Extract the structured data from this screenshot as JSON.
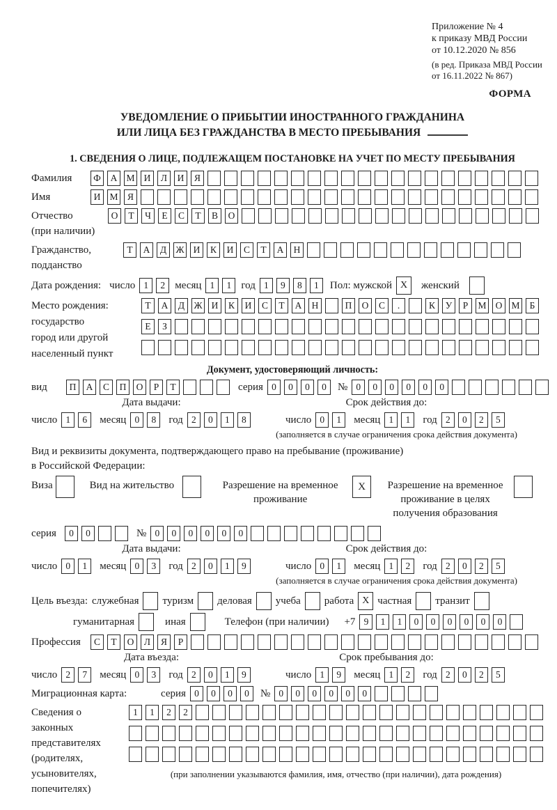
{
  "header": {
    "appendix_line1": "Приложение № 4",
    "appendix_line2": "к приказу МВД России",
    "appendix_line3": "от 10.12.2020 № 856",
    "revision_line1": "(в ред. Приказа МВД России",
    "revision_line2": "от 16.11.2022 № 867)",
    "form_label": "ФОРМА"
  },
  "title": {
    "line1": "УВЕДОМЛЕНИЕ О ПРИБЫТИИ ИНОСТРАННОГО ГРАЖДАНИНА",
    "line2": "ИЛИ ЛИЦА БЕЗ ГРАЖДАНСТВА В МЕСТО ПРЕБЫВАНИЯ"
  },
  "section1": {
    "title": "1. СВЕДЕНИЯ О ЛИЦЕ, ПОДЛЕЖАЩЕМ ПОСТАНОВКЕ НА УЧЕТ ПО МЕСТУ ПРЕБЫВАНИЯ"
  },
  "date_labels": {
    "day": "число",
    "month": "месяц",
    "year": "год"
  },
  "person": {
    "surname_label": "Фамилия",
    "surname": {
      "value": "ФАМИЛИЯ",
      "cells": 27
    },
    "name_label": "Имя",
    "name": {
      "value": "ИМЯ",
      "cells": 27
    },
    "patronymic_label1": "Отчество",
    "patronymic_label2": "(при наличии)",
    "patronymic": {
      "value": "ОТЧЕСТВО",
      "cells": 26
    },
    "citizenship_label1": "Гражданство,",
    "citizenship_label2": "подданство",
    "citizenship": {
      "value": "ТАДЖИКИСТАН",
      "cells": 24
    },
    "birth_date_label": "Дата рождения:",
    "birth_day": {
      "value": "12",
      "cells": 2
    },
    "birth_month": {
      "value": "11",
      "cells": 2
    },
    "birth_year": {
      "value": "1981",
      "cells": 4
    },
    "sex_label": "Пол: мужской",
    "sex_male": "X",
    "sex_female_label": "женский",
    "sex_female": "",
    "birth_place_label": "Место рождения:",
    "birth_place_sublabel1": "государство",
    "birth_place_sublabel2": "город или другой",
    "birth_place_sublabel3": "населенный пункт",
    "birth_place_line1": {
      "value": "ТАДЖИКИСТАН ПОС. КУРМОМБ",
      "cells": 24
    },
    "birth_place_line2": {
      "value": "ЕЗ",
      "cells": 24
    },
    "birth_place_line3": {
      "value": "",
      "cells": 24
    }
  },
  "identity_doc": {
    "header": "Документ, удостоверяющий личность:",
    "kind_label": "вид",
    "kind": {
      "value": "ПАСПОРТ",
      "cells": 10
    },
    "series_label": "серия",
    "series": {
      "value": "0000",
      "cells": 4
    },
    "number_label": "№",
    "number": {
      "value": "000000",
      "cells": 12
    },
    "issue_header": "Дата выдачи:",
    "valid_header": "Срок действия до:",
    "issue_day": {
      "value": "16",
      "cells": 2
    },
    "issue_month": {
      "value": "08",
      "cells": 2
    },
    "issue_year": {
      "value": "2018",
      "cells": 4
    },
    "valid_day": {
      "value": "01",
      "cells": 2
    },
    "valid_month": {
      "value": "11",
      "cells": 2
    },
    "valid_year": {
      "value": "2025",
      "cells": 4
    },
    "footnote": "(заполняется в случае ограничения срока действия документа)"
  },
  "residence_doc": {
    "intro_line1": "Вид и реквизиты документа, подтверждающего право на пребывание (проживание)",
    "intro_line2": "в Российской Федерации:",
    "options": [
      {
        "label": "Виза",
        "checked": ""
      },
      {
        "label": "Вид на жительство",
        "checked": ""
      },
      {
        "label": "Разрешение на временное проживание",
        "checked": "X"
      },
      {
        "label": "Разрешение на временное проживание в целях получения образования",
        "checked": ""
      }
    ],
    "series_label": "серия",
    "series": {
      "value": "00",
      "cells": 4
    },
    "number_label": "№",
    "number": {
      "value": "000000",
      "cells": 14
    },
    "issue_header": "Дата выдачи:",
    "valid_header": "Срок действия до:",
    "issue_day": {
      "value": "01",
      "cells": 2
    },
    "issue_month": {
      "value": "03",
      "cells": 2
    },
    "issue_year": {
      "value": "2019",
      "cells": 4
    },
    "valid_day": {
      "value": "01",
      "cells": 2
    },
    "valid_month": {
      "value": "12",
      "cells": 2
    },
    "valid_year": {
      "value": "2025",
      "cells": 4
    },
    "footnote": "(заполняется в случае ограничения срока действия документа)"
  },
  "visit": {
    "purpose_label": "Цель въезда:",
    "purposes": [
      {
        "label": "служебная",
        "checked": ""
      },
      {
        "label": "туризм",
        "checked": ""
      },
      {
        "label": "деловая",
        "checked": ""
      },
      {
        "label": "учеба",
        "checked": ""
      },
      {
        "label": "работа",
        "checked": "X"
      },
      {
        "label": "частная",
        "checked": ""
      },
      {
        "label": "транзит",
        "checked": ""
      },
      {
        "label": "гуманитарная",
        "checked": ""
      },
      {
        "label": "иная",
        "checked": ""
      }
    ],
    "phone_label": "Телефон (при наличии)",
    "phone_prefix": "+7",
    "phone": {
      "value": "911000000",
      "cells": 10
    },
    "profession_label": "Профессия",
    "profession": {
      "value": "СТОЛЯР",
      "cells": 27
    },
    "entry_header": "Дата въезда:",
    "stay_header": "Срок пребывания до:",
    "entry_day": {
      "value": "27",
      "cells": 2
    },
    "entry_month": {
      "value": "03",
      "cells": 2
    },
    "entry_year": {
      "value": "2019",
      "cells": 4
    },
    "stay_day": {
      "value": "19",
      "cells": 2
    },
    "stay_month": {
      "value": "12",
      "cells": 2
    },
    "stay_year": {
      "value": "2025",
      "cells": 4
    },
    "migration_label": "Миграционная карта:",
    "mig_series_label": "серия",
    "mig_series": {
      "value": "0000",
      "cells": 4
    },
    "mig_number_label": "№",
    "mig_number": {
      "value": "000000",
      "cells": 10
    }
  },
  "representatives": {
    "label_lines": [
      "Сведения о",
      "законных",
      "представителях",
      "(родителях,",
      "усыновителях,",
      "попечителях)"
    ],
    "line1": {
      "value": "1122",
      "cells": 25
    },
    "line2": {
      "value": "",
      "cells": 25
    },
    "line3": {
      "value": "",
      "cells": 25
    },
    "footnote": "(при заполнении указываются фамилия, имя, отчество (при наличии), дата рождения)"
  }
}
